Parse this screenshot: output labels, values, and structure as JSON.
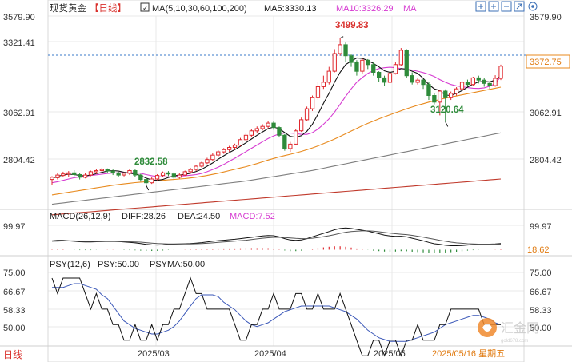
{
  "colors": {
    "up": "#e0282e",
    "down": "#2e8b3a",
    "ma5": "#111111",
    "ma10": "#d63bd1",
    "ma30": "#e88a1e",
    "ma60": "#7f7f7f",
    "ma100": "#c0392b",
    "grid": "#e9e9e9",
    "last_price_line": "#3a78c8",
    "psyma": "#3a57b8",
    "axis_text": "#333333",
    "accent_red": "#d9302c"
  },
  "header": {
    "instrument": "现货黄金",
    "period_tag": "【日线】",
    "ma_label": "MA(5,10,30,60,100,200)",
    "ma5": "MA5:3330.13",
    "ma10": "MA10:3326.29",
    "ma": "MA",
    "toolbar_icons": [
      "fit-icon",
      "zoom-in-icon",
      "zoom-out-icon",
      "expand-icon",
      "settings-icon"
    ]
  },
  "price_axis": {
    "left_labels": [
      "3579.90",
      "3321.41",
      "3062.91",
      "2804.42"
    ],
    "right_labels": [
      "3579.90",
      "3062.91",
      "2804.42"
    ],
    "last_price": "3372.75"
  },
  "macd_header": {
    "label": "MACD(26,12,9)",
    "diff": "DIFF:28.26",
    "dea": "DEA:24.50",
    "macd": "MACD:7.52"
  },
  "macd_axis": {
    "top": "99.97",
    "bottom": "18.62"
  },
  "psy_header": {
    "label": "PSY(12,6)",
    "psy": "PSY:50.00",
    "psyma": "PSYMA:50.00"
  },
  "psy_axis": {
    "labels": [
      "75.00",
      "66.67",
      "58.33",
      "50.00"
    ]
  },
  "footer": {
    "period": "日线",
    "months": [
      "2025/03",
      "2025/04",
      "2025/05"
    ],
    "date": "2025/05/16 星期五",
    "watermark": "汇金网",
    "watermark_url": "gold678.com"
  },
  "chart_data": {
    "type": "candlestick",
    "price_range": [
      2750,
      3600
    ],
    "annotations": {
      "high": "3499.83",
      "low_mid": "3120.64",
      "low_early": "2832.58"
    },
    "candles": [
      [
        2860,
        2870,
        2835,
        2875
      ],
      [
        2868,
        2880,
        2860,
        2888
      ],
      [
        2878,
        2885,
        2870,
        2895
      ],
      [
        2885,
        2890,
        2872,
        2898
      ],
      [
        2890,
        2882,
        2875,
        2902
      ],
      [
        2882,
        2870,
        2860,
        2890
      ],
      [
        2870,
        2880,
        2865,
        2888
      ],
      [
        2880,
        2895,
        2875,
        2900
      ],
      [
        2895,
        2900,
        2885,
        2908
      ],
      [
        2900,
        2905,
        2892,
        2912
      ],
      [
        2905,
        2898,
        2888,
        2910
      ],
      [
        2898,
        2890,
        2880,
        2905
      ],
      [
        2890,
        2880,
        2870,
        2895
      ],
      [
        2880,
        2888,
        2874,
        2893
      ],
      [
        2888,
        2900,
        2880,
        2906
      ],
      [
        2900,
        2880,
        2870,
        2905
      ],
      [
        2880,
        2860,
        2850,
        2885
      ],
      [
        2860,
        2845,
        2833,
        2866
      ],
      [
        2845,
        2862,
        2840,
        2870
      ],
      [
        2862,
        2878,
        2856,
        2884
      ],
      [
        2878,
        2890,
        2872,
        2896
      ],
      [
        2890,
        2885,
        2875,
        2898
      ],
      [
        2885,
        2870,
        2862,
        2892
      ],
      [
        2870,
        2880,
        2864,
        2888
      ],
      [
        2880,
        2895,
        2876,
        2900
      ],
      [
        2895,
        2905,
        2888,
        2912
      ],
      [
        2905,
        2920,
        2898,
        2926
      ],
      [
        2920,
        2935,
        2914,
        2940
      ],
      [
        2935,
        2950,
        2930,
        2958
      ],
      [
        2950,
        2970,
        2945,
        2978
      ],
      [
        2970,
        2985,
        2962,
        2992
      ],
      [
        2985,
        2995,
        2976,
        3002
      ],
      [
        2995,
        3005,
        2985,
        3012
      ],
      [
        3005,
        3015,
        2995,
        3022
      ],
      [
        3015,
        3040,
        3010,
        3048
      ],
      [
        3040,
        3060,
        3032,
        3068
      ],
      [
        3060,
        3080,
        3052,
        3090
      ],
      [
        3080,
        3090,
        3070,
        3100
      ],
      [
        3090,
        3100,
        3082,
        3110
      ],
      [
        3100,
        3115,
        3092,
        3125
      ],
      [
        3115,
        3095,
        3085,
        3122
      ],
      [
        3095,
        3060,
        3050,
        3100
      ],
      [
        3060,
        3000,
        2990,
        3065
      ],
      [
        3000,
        3020,
        2985,
        3030
      ],
      [
        3020,
        3080,
        3015,
        3090
      ],
      [
        3080,
        3130,
        3075,
        3140
      ],
      [
        3130,
        3180,
        3125,
        3190
      ],
      [
        3180,
        3230,
        3170,
        3240
      ],
      [
        3230,
        3280,
        3220,
        3300
      ],
      [
        3280,
        3300,
        3270,
        3330
      ],
      [
        3300,
        3350,
        3290,
        3370
      ],
      [
        3350,
        3430,
        3345,
        3450
      ],
      [
        3430,
        3470,
        3420,
        3500
      ],
      [
        3470,
        3420,
        3390,
        3480
      ],
      [
        3420,
        3390,
        3370,
        3430
      ],
      [
        3390,
        3350,
        3330,
        3400
      ],
      [
        3350,
        3400,
        3340,
        3410
      ],
      [
        3400,
        3380,
        3360,
        3405
      ],
      [
        3380,
        3345,
        3330,
        3390
      ],
      [
        3345,
        3320,
        3300,
        3350
      ],
      [
        3320,
        3300,
        3285,
        3330
      ],
      [
        3300,
        3340,
        3295,
        3350
      ],
      [
        3340,
        3380,
        3335,
        3390
      ],
      [
        3380,
        3445,
        3375,
        3455
      ],
      [
        3445,
        3330,
        3320,
        3450
      ],
      [
        3330,
        3300,
        3290,
        3345
      ],
      [
        3300,
        3310,
        3290,
        3320
      ],
      [
        3310,
        3290,
        3270,
        3315
      ],
      [
        3290,
        3240,
        3220,
        3300
      ],
      [
        3240,
        3210,
        3200,
        3250
      ],
      [
        3210,
        3260,
        3150,
        3265
      ],
      [
        3260,
        3230,
        3121,
        3268
      ],
      [
        3230,
        3250,
        3220,
        3258
      ],
      [
        3250,
        3270,
        3240,
        3278
      ],
      [
        3270,
        3300,
        3260,
        3310
      ],
      [
        3300,
        3290,
        3280,
        3312
      ],
      [
        3290,
        3320,
        3285,
        3325
      ],
      [
        3320,
        3310,
        3295,
        3330
      ],
      [
        3310,
        3295,
        3280,
        3318
      ],
      [
        3295,
        3285,
        3270,
        3300
      ],
      [
        3285,
        3318,
        3280,
        3332
      ],
      [
        3318,
        3373,
        3310,
        3380
      ]
    ],
    "ma5": [
      2865,
      2874,
      2880,
      2884,
      2882,
      2878,
      2876,
      2880,
      2886,
      2892,
      2898,
      2900,
      2898,
      2893,
      2888,
      2885,
      2878,
      2866,
      2858,
      2856,
      2860,
      2869,
      2876,
      2880,
      2883,
      2888,
      2896,
      2906,
      2920,
      2935,
      2952,
      2967,
      2982,
      2995,
      3010,
      3026,
      3043,
      3060,
      3075,
      3090,
      3097,
      3090,
      3072,
      3055,
      3051,
      3058,
      3078,
      3110,
      3155,
      3205,
      3250,
      3300,
      3345,
      3380,
      3396,
      3410,
      3408,
      3398,
      3386,
      3370,
      3352,
      3345,
      3350,
      3362,
      3360,
      3350,
      3340,
      3318,
      3290,
      3270,
      3262,
      3242,
      3240,
      3250,
      3262,
      3278,
      3292,
      3302,
      3304,
      3302,
      3310,
      3330
    ],
    "ma10": [
      2845,
      2850,
      2856,
      2862,
      2868,
      2872,
      2875,
      2878,
      2881,
      2884,
      2887,
      2889,
      2890,
      2891,
      2891,
      2890,
      2888,
      2882,
      2877,
      2873,
      2872,
      2872,
      2873,
      2875,
      2877,
      2879,
      2882,
      2887,
      2895,
      2905,
      2916,
      2928,
      2942,
      2956,
      2971,
      2986,
      3001,
      3016,
      3031,
      3045,
      3057,
      3066,
      3070,
      3070,
      3068,
      3064,
      3064,
      3072,
      3088,
      3110,
      3134,
      3165,
      3200,
      3236,
      3270,
      3300,
      3322,
      3340,
      3353,
      3362,
      3366,
      3368,
      3366,
      3362,
      3360,
      3355,
      3350,
      3344,
      3336,
      3326,
      3312,
      3300,
      3290,
      3284,
      3280,
      3276,
      3273,
      3272,
      3275,
      3282,
      3294,
      3326
    ],
    "ma30": [
      2790,
      2794,
      2798,
      2802,
      2806,
      2810,
      2814,
      2818,
      2822,
      2826,
      2830,
      2834,
      2837,
      2840,
      2843,
      2846,
      2848,
      2850,
      2852,
      2854,
      2856,
      2858,
      2860,
      2862,
      2864,
      2867,
      2870,
      2874,
      2878,
      2883,
      2888,
      2894,
      2900,
      2906,
      2912,
      2918,
      2925,
      2932,
      2940,
      2948,
      2955,
      2962,
      2968,
      2974,
      2980,
      2987,
      2995,
      3003,
      3012,
      3022,
      3032,
      3043,
      3055,
      3067,
      3079,
      3091,
      3103,
      3114,
      3124,
      3134,
      3144,
      3153,
      3162,
      3171,
      3180,
      3188,
      3196,
      3203,
      3210,
      3216,
      3222,
      3228,
      3233,
      3238,
      3243,
      3248,
      3253,
      3258,
      3263,
      3268,
      3273,
      3278
    ],
    "ma60": [
      2748,
      2751,
      2754,
      2757,
      2760,
      2763,
      2766,
      2769,
      2772,
      2775,
      2778,
      2781,
      2784,
      2787,
      2790,
      2793,
      2796,
      2799,
      2802,
      2805,
      2808,
      2811,
      2814,
      2817,
      2820,
      2823,
      2826,
      2829,
      2832,
      2835,
      2838,
      2841,
      2844,
      2847,
      2850,
      2853,
      2857,
      2861,
      2865,
      2869,
      2873,
      2877,
      2881,
      2885,
      2889,
      2893,
      2897,
      2901,
      2906,
      2911,
      2916,
      2921,
      2926,
      2931,
      2936,
      2941,
      2946,
      2951,
      2956,
      2961,
      2966,
      2971,
      2976,
      2981,
      2986,
      2991,
      2996,
      3001,
      3006,
      3011,
      3016,
      3021,
      3026,
      3031,
      3036,
      3041,
      3046,
      3051,
      3056,
      3061,
      3066,
      3071
    ],
    "ma100": [
      2700,
      2702,
      2704,
      2706,
      2708,
      2710,
      2712,
      2714,
      2716,
      2718,
      2720,
      2722,
      2724,
      2726,
      2728,
      2730,
      2732,
      2734,
      2736,
      2738,
      2740,
      2742,
      2744,
      2746,
      2748,
      2750,
      2752,
      2754,
      2756,
      2758,
      2760,
      2762,
      2764,
      2766,
      2768,
      2770,
      2772,
      2774,
      2776,
      2778,
      2780,
      2782,
      2784,
      2786,
      2788,
      2790,
      2792,
      2794,
      2796,
      2798,
      2800,
      2802,
      2804,
      2806,
      2808,
      2810,
      2812,
      2814,
      2816,
      2818,
      2820,
      2822,
      2824,
      2826,
      2828,
      2830,
      2832,
      2834,
      2836,
      2838,
      2840,
      2842,
      2844,
      2846,
      2848,
      2850,
      2852,
      2854,
      2856,
      2858,
      2860,
      2862
    ],
    "macd_range": [
      -20,
      110
    ],
    "diff": [
      40,
      42,
      42,
      40,
      38,
      36,
      35,
      35,
      36,
      37,
      38,
      38,
      37,
      35,
      33,
      31,
      28,
      24,
      22,
      21,
      22,
      24,
      25,
      26,
      27,
      28,
      30,
      32,
      35,
      38,
      41,
      43,
      45,
      47,
      50,
      53,
      56,
      59,
      62,
      64,
      63,
      58,
      50,
      44,
      42,
      44,
      50,
      58,
      66,
      74,
      82,
      90,
      96,
      98,
      96,
      92,
      88,
      84,
      78,
      72,
      66,
      62,
      60,
      61,
      58,
      52,
      46,
      40,
      33,
      27,
      24,
      20,
      18,
      18,
      19,
      21,
      23,
      24,
      25,
      25,
      26,
      28
    ],
    "dea": [
      38,
      39,
      40,
      40,
      40,
      39,
      38,
      38,
      37,
      37,
      37,
      37,
      37,
      37,
      36,
      35,
      34,
      32,
      30,
      28,
      27,
      26,
      26,
      26,
      26,
      26,
      27,
      28,
      29,
      31,
      33,
      35,
      37,
      39,
      41,
      43,
      46,
      49,
      52,
      54,
      56,
      56,
      55,
      53,
      51,
      50,
      50,
      52,
      55,
      59,
      63,
      68,
      74,
      79,
      82,
      84,
      85,
      85,
      84,
      81,
      78,
      75,
      72,
      70,
      68,
      65,
      61,
      57,
      52,
      47,
      42,
      38,
      34,
      31,
      29,
      27,
      26,
      25,
      25,
      25,
      25,
      24.5
    ],
    "psy": [
      75,
      66.67,
      75,
      75,
      75,
      75,
      66.67,
      58.33,
      66.67,
      58.33,
      58.33,
      50,
      50,
      41.67,
      41.67,
      50,
      41.67,
      41.67,
      50,
      41.67,
      50,
      50,
      58.33,
      58.33,
      66.67,
      75,
      66.67,
      66.67,
      58.33,
      58.33,
      58.33,
      58.33,
      58.33,
      50,
      41.67,
      41.67,
      50,
      50,
      58.33,
      58.33,
      66.67,
      58.33,
      58.33,
      58.33,
      66.67,
      66.67,
      58.33,
      58.33,
      66.67,
      58.33,
      58.33,
      58.33,
      66.67,
      58.33,
      50,
      41.67,
      33.33,
      33.33,
      41.67,
      41.67,
      33.33,
      41.67,
      41.67,
      33.33,
      41.67,
      41.67,
      50,
      41.67,
      41.67,
      41.67,
      50,
      50,
      58.33,
      58.33,
      58.33,
      58.33,
      58.33,
      58.33,
      50,
      50,
      50,
      50
    ],
    "psyma": [
      70,
      70,
      70,
      71,
      72,
      72,
      71,
      70,
      69,
      66,
      64,
      60,
      56,
      52,
      50,
      48,
      47,
      46,
      45,
      45,
      46,
      47,
      49,
      52,
      56,
      60,
      64,
      66,
      66,
      66,
      65,
      62,
      60,
      58,
      55,
      52,
      50,
      49,
      50,
      51,
      53,
      55,
      57,
      58,
      59,
      60,
      60,
      60,
      60,
      60,
      60,
      59,
      58,
      57,
      55,
      53,
      50,
      47,
      45,
      43,
      42,
      41,
      41,
      41,
      41,
      42,
      43,
      44,
      45,
      46,
      48,
      50,
      51,
      52,
      53,
      54,
      55,
      55,
      54,
      53,
      51,
      50
    ],
    "psy_range": [
      42,
      78
    ]
  }
}
